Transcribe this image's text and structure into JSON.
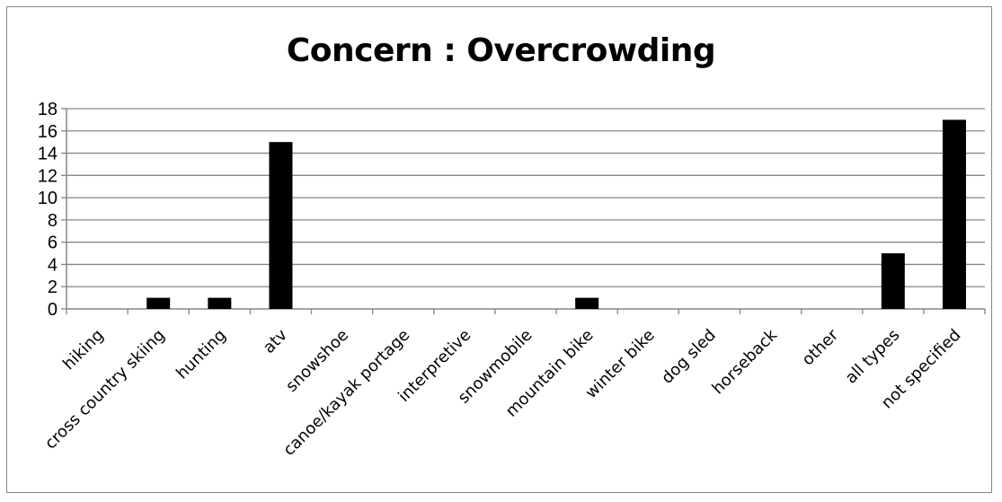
{
  "chart_data": {
    "type": "bar",
    "title": "Concern : Overcrowding",
    "xlabel": "",
    "ylabel": "",
    "categories": [
      "hiking",
      "cross country skiing",
      "hunting",
      "atv",
      "snowshoe",
      "canoe/kayak portage",
      "interpretive",
      "snowmobile",
      "mountain bike",
      "winter bike",
      "dog sled",
      "horseback",
      "other",
      "all types",
      "not specified"
    ],
    "values": [
      0,
      1,
      1,
      15,
      0,
      0,
      0,
      0,
      1,
      0,
      0,
      0,
      0,
      5,
      17
    ],
    "ylim": [
      0,
      18
    ],
    "yticks": [
      0,
      2,
      4,
      6,
      8,
      10,
      12,
      14,
      16,
      18
    ],
    "grid": true,
    "legend": "none",
    "bar_color": "#000000",
    "grid_color": "#868686"
  }
}
